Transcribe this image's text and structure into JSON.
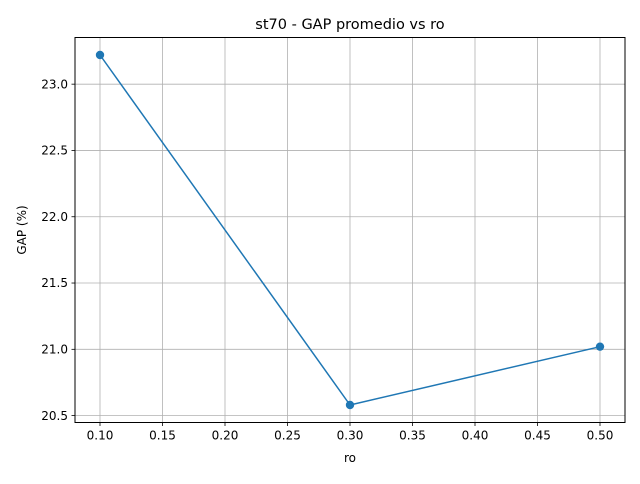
{
  "chart_data": {
    "type": "line",
    "title": "st70 - GAP promedio vs ro",
    "xlabel": "ro",
    "ylabel": "GAP (%)",
    "x": [
      0.1,
      0.3,
      0.5
    ],
    "series": [
      {
        "values": [
          23.22,
          20.58,
          21.02
        ],
        "color": "#1f77b4",
        "marker": "circle"
      }
    ],
    "xlim": [
      0.08,
      0.52
    ],
    "ylim": [
      20.448,
      23.352
    ],
    "xticks": [
      0.1,
      0.15,
      0.2,
      0.25,
      0.3,
      0.35,
      0.4,
      0.45,
      0.5
    ],
    "xtick_labels": [
      "0.10",
      "0.15",
      "0.20",
      "0.25",
      "0.30",
      "0.35",
      "0.40",
      "0.45",
      "0.50"
    ],
    "yticks": [
      20.5,
      21.0,
      21.5,
      22.0,
      22.5,
      23.0
    ],
    "ytick_labels": [
      "20.5",
      "21.0",
      "21.5",
      "22.0",
      "22.5",
      "23.0"
    ],
    "grid": true,
    "legend": false
  }
}
